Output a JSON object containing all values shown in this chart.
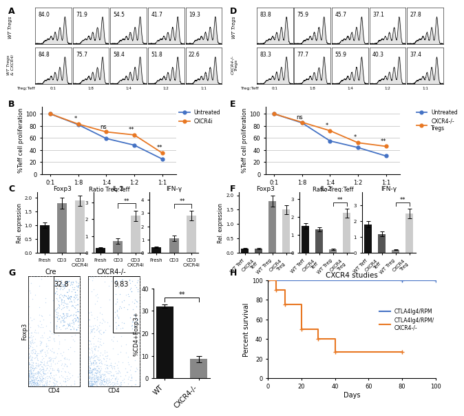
{
  "panel_A": {
    "label": "A",
    "row1_label": "WT Tregs",
    "row2_label": "WT Tregs\n& CXCR4i",
    "ratios": [
      "0:1",
      "1:8",
      "1:4",
      "1:2",
      "1:1"
    ],
    "row1_values": [
      "84.0",
      "71.9",
      "54.5",
      "41.7",
      "19.3"
    ],
    "row2_values": [
      "84.8",
      "75.7",
      "58.4",
      "51.8",
      "22.6"
    ]
  },
  "panel_D": {
    "label": "D",
    "row1_label": "WT Tregs",
    "row2_label": "CXCR4-/-\nTregs",
    "ratios": [
      "0:1",
      "1:8",
      "1:4",
      "1:2",
      "1:1"
    ],
    "row1_values": [
      "83.8",
      "75.9",
      "45.7",
      "37.1",
      "27.8"
    ],
    "row2_values": [
      "83.3",
      "77.7",
      "55.9",
      "40.3",
      "37.4"
    ]
  },
  "panel_B": {
    "label": "B",
    "ylabel": "%Teff cell proliferation",
    "xlabel": "Ratio Treg:Teff",
    "xticks": [
      "0:1",
      "1:8",
      "1:4",
      "1:2",
      "1:1"
    ],
    "untreated_y": [
      100,
      82,
      59,
      48,
      25
    ],
    "cxcr4i_y": [
      100,
      83,
      70,
      65,
      35
    ],
    "untreated_color": "#4472C4",
    "cxcr4i_color": "#E87722",
    "legend1": "Untreated",
    "legend2": "CXCR4i",
    "significance": [
      "*",
      "ns",
      "**",
      "**"
    ]
  },
  "panel_E": {
    "label": "E",
    "ylabel": "%Teff cell proliferation",
    "xlabel": "Ratio Treg:Teff",
    "xticks": [
      "0:1",
      "1:8",
      "1:4",
      "1:2",
      "1:1"
    ],
    "untreated_y": [
      100,
      85,
      55,
      44,
      30
    ],
    "cxcr4i_y": [
      100,
      86,
      72,
      52,
      46
    ],
    "untreated_color": "#4472C4",
    "cxcr4i_color": "#E87722",
    "legend1": "Untreated",
    "legend2": "CXCR4-/-\nTregs",
    "significance": [
      "ns",
      "*",
      "*",
      "**"
    ]
  },
  "panel_C": {
    "label": "C",
    "bar_labels": [
      "Fresh",
      "CD3",
      "CD3\nCXCR4i"
    ],
    "foxp3_vals": [
      1.0,
      1.8,
      1.9
    ],
    "il2_vals": [
      0.3,
      0.7,
      2.2
    ],
    "ifng_vals": [
      0.4,
      1.1,
      2.8
    ],
    "foxp3_err": [
      0.1,
      0.2,
      0.2
    ],
    "il2_err": [
      0.05,
      0.15,
      0.3
    ],
    "ifng_err": [
      0.05,
      0.2,
      0.35
    ],
    "bar_colors": [
      "#111111",
      "#888888",
      "#cccccc"
    ],
    "ylabel": "Rel. expression",
    "significance_il2": "**",
    "significance_ifng": "**"
  },
  "panel_F": {
    "label": "F",
    "bar_labels": [
      "WT Teff",
      "CXCR4\nTeff",
      "WT Treg",
      "CXCR4\nTreg"
    ],
    "foxp3_vals": [
      0.15,
      0.15,
      1.8,
      1.5
    ],
    "il2_vals": [
      1.5,
      1.3,
      0.2,
      2.2
    ],
    "ifng_vals": [
      1.8,
      1.2,
      0.2,
      2.5
    ],
    "foxp3_err": [
      0.02,
      0.02,
      0.2,
      0.15
    ],
    "il2_err": [
      0.15,
      0.12,
      0.03,
      0.25
    ],
    "ifng_err": [
      0.2,
      0.15,
      0.03,
      0.3
    ],
    "bar_colors": [
      "#111111",
      "#555555",
      "#888888",
      "#cccccc"
    ],
    "ylabel": "Rel. expression",
    "significance_il2": "**",
    "significance_ifng": "**"
  },
  "panel_G": {
    "label": "G",
    "label_cre": "Cre",
    "label_cxcr4": "CXCR4-/-",
    "val_cre": "32.8",
    "val_cxcr4": "9.83",
    "bar_wt": 32.0,
    "bar_cxcr4": 8.5,
    "bar_err_wt": 0.8,
    "bar_err_cxcr4": 1.5,
    "bar_colors": [
      "#111111",
      "#888888"
    ],
    "ylabel": "%CD4+Foxp3+",
    "ylim_bar": [
      0,
      40
    ],
    "xticks_bar": [
      "WT",
      "CXCR4-/-"
    ],
    "significance": "**"
  },
  "panel_H": {
    "label": "H",
    "title": "CXCR4 studies",
    "ylabel": "Percent survival",
    "xlabel": "Days",
    "ctla4_days": [
      0,
      80,
      100
    ],
    "ctla4_survival": [
      100,
      100,
      100
    ],
    "cxcr4_days": [
      0,
      5,
      10,
      20,
      30,
      40,
      80
    ],
    "cxcr4_survival": [
      100,
      90,
      75,
      50,
      40,
      27,
      27
    ],
    "ctla4_color": "#4472C4",
    "cxcr4_color": "#E87722",
    "legend1": "CTLA4Ig4/RPM",
    "legend2": "CTLA4Ig4/RPM/\nCXCR4-/-",
    "ylim": [
      0,
      100
    ],
    "xlim": [
      0,
      100
    ]
  }
}
